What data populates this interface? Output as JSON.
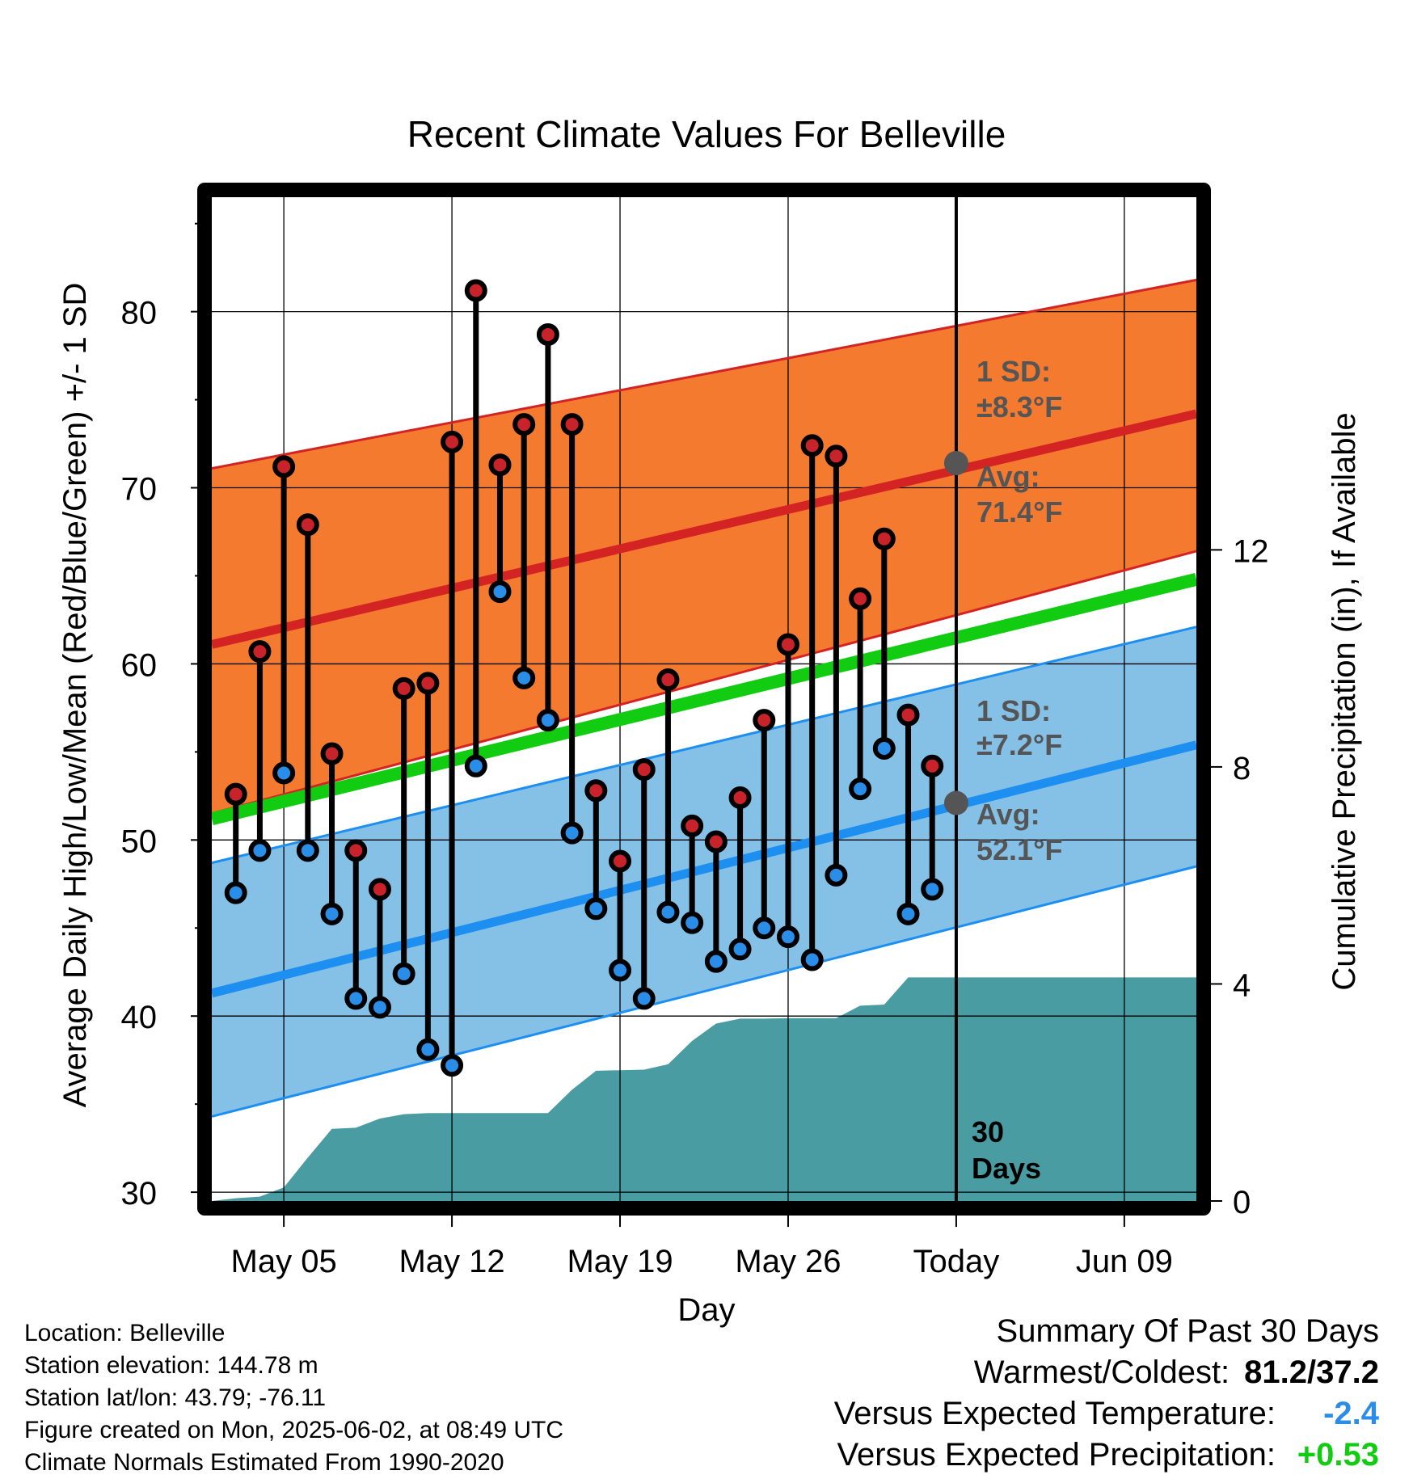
{
  "chart_data": {
    "type": "line",
    "title": "Recent Climate Values For Belleville",
    "xlabel": "Day",
    "ylabel": "Average Daily High/Low/Mean (Red/Blue/Green) +/- 1 SD",
    "y2label": "Cumulative Precipitation (in), If Available",
    "x_range": [
      "May 02",
      "Jun 12"
    ],
    "ylim": [
      29.5,
      86.5
    ],
    "y2lim": [
      0,
      18.5
    ],
    "yticks": [
      30,
      40,
      50,
      60,
      70,
      80
    ],
    "y2ticks": [
      0,
      4,
      8,
      12
    ],
    "xticks": [
      {
        "date": "May 05",
        "label": "May 05"
      },
      {
        "date": "May 12",
        "label": "May 12"
      },
      {
        "date": "May 19",
        "label": "May 19"
      },
      {
        "date": "May 26",
        "label": "May 26"
      },
      {
        "date": "Jun 02",
        "label": "Today"
      },
      {
        "date": "Jun 09",
        "label": "Jun 09"
      }
    ],
    "grid": true,
    "normals": {
      "dates": [
        "May 02",
        "Jun 12"
      ],
      "high_mean": [
        61.1,
        74.2
      ],
      "high_upper": [
        71.1,
        81.8
      ],
      "high_lower": [
        51.5,
        66.4
      ],
      "low_mean": [
        41.3,
        55.4
      ],
      "low_upper": [
        48.7,
        62.1
      ],
      "low_lower": [
        34.3,
        48.5
      ],
      "avg_mean": [
        51.2,
        64.8
      ]
    },
    "daily": {
      "dates": [
        "May 03",
        "May 04",
        "May 05",
        "May 06",
        "May 07",
        "May 08",
        "May 09",
        "May 10",
        "May 11",
        "May 12",
        "May 13",
        "May 14",
        "May 15",
        "May 16",
        "May 17",
        "May 18",
        "May 19",
        "May 20",
        "May 21",
        "May 22",
        "May 23",
        "May 24",
        "May 25",
        "May 26",
        "May 27",
        "May 28",
        "May 29",
        "May 30",
        "May 31",
        "Jun 01"
      ],
      "highs": [
        52.6,
        60.7,
        71.2,
        67.9,
        54.9,
        49.4,
        47.2,
        58.6,
        58.9,
        72.6,
        81.2,
        71.3,
        73.6,
        78.7,
        73.6,
        52.8,
        48.8,
        54.0,
        59.1,
        50.8,
        49.9,
        52.4,
        56.8,
        61.1,
        72.4,
        71.8,
        63.7,
        67.1,
        57.1,
        54.2
      ],
      "lows": [
        47.0,
        49.4,
        53.8,
        49.4,
        45.8,
        41.0,
        40.5,
        42.4,
        38.1,
        37.2,
        54.2,
        64.1,
        59.2,
        56.8,
        50.4,
        46.1,
        42.6,
        41.0,
        45.9,
        45.3,
        43.1,
        43.8,
        45.0,
        44.5,
        43.2,
        48.0,
        52.9,
        55.2,
        45.8,
        47.2
      ]
    },
    "precipitation": {
      "dates": [
        "May 02",
        "May 03",
        "May 04",
        "May 05",
        "May 06",
        "May 07",
        "May 08",
        "May 09",
        "May 10",
        "May 11",
        "May 16",
        "May 17",
        "May 18",
        "May 20",
        "May 21",
        "May 22",
        "May 23",
        "May 24",
        "May 25",
        "May 26",
        "May 27",
        "May 28",
        "May 29",
        "May 30",
        "May 31",
        "Jun 12"
      ],
      "cumulative": [
        0.0,
        0.05,
        0.08,
        0.25,
        0.8,
        1.33,
        1.35,
        1.52,
        1.6,
        1.62,
        1.62,
        2.05,
        2.4,
        2.42,
        2.52,
        2.95,
        3.27,
        3.36,
        3.36,
        3.37,
        3.37,
        3.37,
        3.6,
        3.62,
        4.12,
        4.12
      ]
    },
    "annotations": {
      "high_sd": {
        "line1": "1 SD:",
        "line2": "±8.3°F"
      },
      "high_avg": {
        "line1": "Avg:",
        "line2": "71.4°F",
        "value": 71.4
      },
      "low_sd": {
        "line1": "1 SD:",
        "line2": "±7.2°F"
      },
      "low_avg": {
        "line1": "Avg:",
        "line2": "52.1°F",
        "value": 52.1
      },
      "window": {
        "line1": "30",
        "line2": "Days"
      }
    },
    "colors": {
      "high_band": "#f47a30",
      "high_line": "#d42323",
      "low_band": "#85c1e7",
      "low_line": "#1c8ff0",
      "avg_line": "#11cc11",
      "precip": "#4a9ca3",
      "high_dot": "#c8232a",
      "low_dot": "#2a8de8",
      "today_dot": "#555555"
    }
  },
  "info": {
    "location": "Location: Belleville",
    "elevation": "Station elevation: 144.78 m",
    "latlon": "Station lat/lon: 43.79; -76.11",
    "created": "Figure created on Mon, 2025-06-02, at 08:49 UTC",
    "normals": "Climate Normals Estimated From 1990-2020"
  },
  "summary": {
    "title": "Summary Of Past 30 Days",
    "warm_cold_label": "Warmest/Coldest:",
    "warm_cold_value": "81.2/37.2",
    "temp_label": "Versus Expected Temperature:",
    "temp_value": "-2.4",
    "temp_color": "#2a8de8",
    "precip_label": "Versus Expected Precipitation:",
    "precip_value": "+0.53",
    "precip_color": "#11cc11"
  }
}
